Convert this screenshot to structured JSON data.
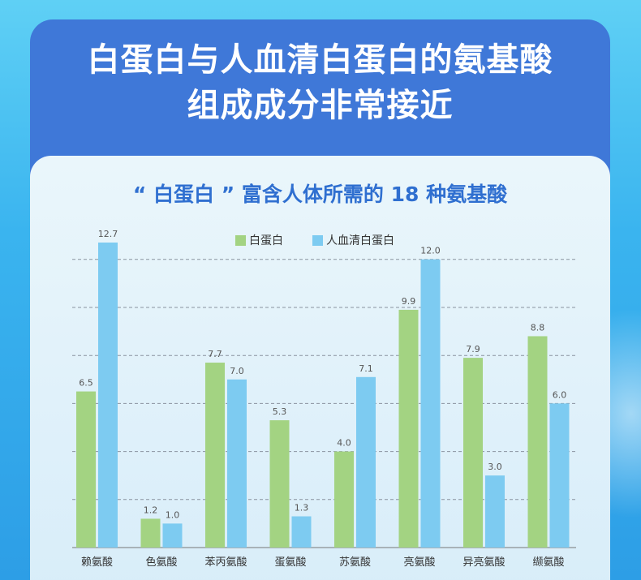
{
  "headline": {
    "line1": "白蛋白与人血清白蛋白的氨基酸",
    "line2": "组成成分非常接近"
  },
  "chart_data": {
    "type": "bar",
    "title": "“ 白蛋白 ” 富含人体所需的 18 种氨基酸",
    "categories": [
      "赖氨酸",
      "色氨酸",
      "苯丙氨酸",
      "蛋氨酸",
      "苏氨酸",
      "亮氨酸",
      "异亮氨酸",
      "缬氨酸"
    ],
    "series": [
      {
        "name": "白蛋白",
        "color": "#a3d382",
        "values": [
          6.5,
          1.2,
          7.7,
          5.3,
          4.0,
          9.9,
          7.9,
          8.8
        ],
        "labels": [
          "6.5",
          "1.2",
          "7.7",
          "5.3",
          "4.0",
          "9.9",
          "7.9",
          "8.8"
        ]
      },
      {
        "name": "人血清白蛋白",
        "color": "#7dcbf1",
        "values": [
          12.7,
          1.0,
          7.0,
          1.3,
          7.1,
          12.0,
          3.0,
          6.0
        ],
        "labels": [
          "12.7",
          "1.0",
          "7.0",
          "1.3",
          "7.1",
          "12.0",
          "3.0",
          "6.0"
        ]
      }
    ],
    "ylim": [
      0,
      12.7
    ],
    "grid": true,
    "legend_position": "top-center",
    "xlabel": "",
    "ylabel": ""
  }
}
